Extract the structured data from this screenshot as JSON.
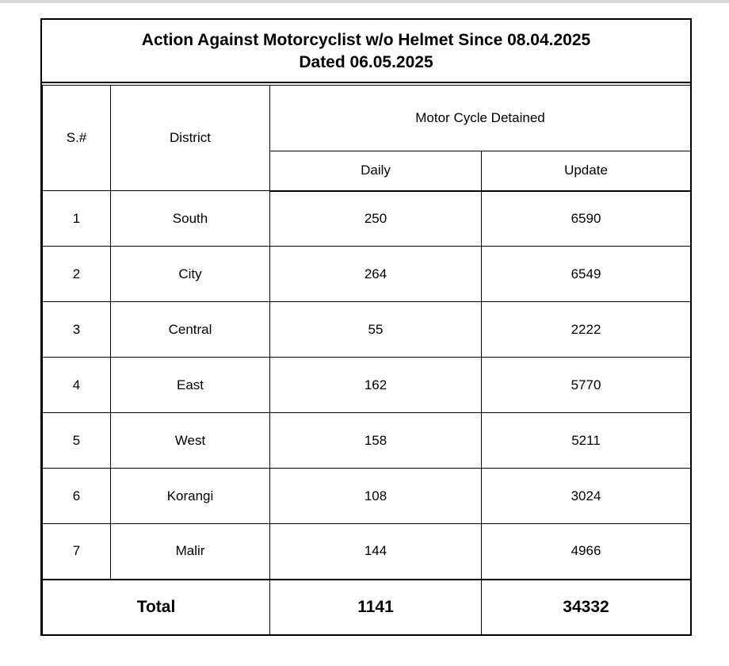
{
  "title": {
    "line1": "Action Against Motorcyclist w/o Helmet Since 08.04.2025",
    "line2": "Dated 06.05.2025"
  },
  "headers": {
    "sn": "S.#",
    "district": "District",
    "group": "Motor Cycle Detained",
    "daily": "Daily",
    "update": "Update"
  },
  "rows": [
    {
      "sn": "1",
      "district": "South",
      "daily": "250",
      "update": "6590"
    },
    {
      "sn": "2",
      "district": "City",
      "daily": "264",
      "update": "6549"
    },
    {
      "sn": "3",
      "district": "Central",
      "daily": "55",
      "update": "2222"
    },
    {
      "sn": "4",
      "district": "East",
      "daily": "162",
      "update": "5770"
    },
    {
      "sn": "5",
      "district": "West",
      "daily": "158",
      "update": "5211"
    },
    {
      "sn": "6",
      "district": "Korangi",
      "daily": "108",
      "update": "3024"
    },
    {
      "sn": "7",
      "district": "Malir",
      "daily": "144",
      "update": "4966"
    }
  ],
  "total": {
    "label": "Total",
    "daily": "1141",
    "update": "34332"
  }
}
